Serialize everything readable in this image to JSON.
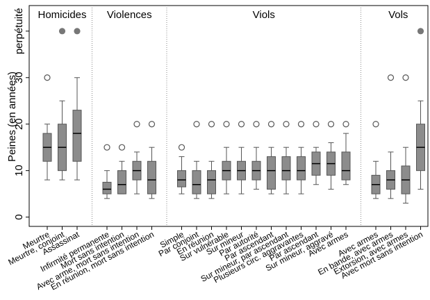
{
  "chart_data": {
    "type": "box",
    "ylabel": "Peines (en années)",
    "ylim": [
      -2,
      45.5
    ],
    "yticks": [
      0,
      10,
      20,
      30,
      {
        "value": 40,
        "label": "perpétuité"
      }
    ],
    "color": "#8c8c8c",
    "groups": [
      {
        "name": "Homicides",
        "categories": [
          "Meurtre",
          "Meurtre, conjoint",
          "Assassinat"
        ],
        "min": [
          8,
          8,
          8
        ],
        "q1": [
          12,
          10,
          12
        ],
        "median": [
          15,
          15,
          18
        ],
        "q3": [
          18,
          20,
          23
        ],
        "max": [
          20,
          25,
          30
        ],
        "outliers": [
          [
            30
          ],
          [
            40
          ],
          [
            40
          ]
        ]
      },
      {
        "name": "Violences",
        "categories": [
          "Infirmité permanente",
          "Mort sans intention",
          "Avec arme, mort sans intention",
          "En réunion, mort sans intention"
        ],
        "min": [
          4,
          5,
          5,
          4
        ],
        "q1": [
          5,
          5,
          8,
          5
        ],
        "median": [
          6,
          7,
          10,
          8
        ],
        "q3": [
          7.5,
          10,
          12,
          12
        ],
        "max": [
          10,
          12,
          14,
          15
        ],
        "outliers": [
          [
            15
          ],
          [
            15
          ],
          [
            20
          ],
          [
            20
          ]
        ]
      },
      {
        "name": "Viols",
        "categories": [
          "Simple",
          "Par conjoint",
          "En réunion",
          "Sur vulnérable",
          "Sur mineur",
          "Par autorité",
          "Par ascendant",
          "Sur mineur, par ascendant",
          "Plusieurs circ. aggravantes",
          "Par ascendant",
          "Sur mineur, aggravé",
          "Avec armes"
        ],
        "min": [
          5,
          4,
          4,
          5,
          5,
          6,
          5,
          5,
          5,
          7,
          6,
          7
        ],
        "q1": [
          6.5,
          5,
          5,
          8,
          8,
          8,
          6,
          8,
          8,
          9,
          9,
          8
        ],
        "median": [
          8,
          7,
          8,
          10,
          10,
          10,
          10,
          10,
          10,
          11.5,
          11.5,
          10
        ],
        "q3": [
          10,
          10,
          10,
          12,
          12,
          12,
          13,
          13,
          13,
          14,
          14,
          14
        ],
        "max": [
          13,
          12,
          12,
          15,
          15,
          15,
          15,
          15,
          15,
          15,
          16,
          18
        ],
        "outliers": [
          [
            15
          ],
          [
            20
          ],
          [
            20
          ],
          [
            20
          ],
          [
            20
          ],
          [
            20
          ],
          [
            20
          ],
          [
            20
          ],
          [
            20
          ],
          [
            20
          ],
          [
            20
          ],
          [
            20
          ]
        ]
      },
      {
        "name": "Vols",
        "categories": [
          "Avec armes",
          "En bande, avec armes",
          "Extorsion, avec armes",
          "Avec mort sans intention"
        ],
        "min": [
          4,
          4,
          3,
          6
        ],
        "q1": [
          5,
          6,
          5,
          10
        ],
        "median": [
          7,
          8,
          8,
          15
        ],
        "q3": [
          9,
          10,
          11,
          20
        ],
        "max": [
          12,
          14,
          15,
          25
        ],
        "outliers": [
          [
            20
          ],
          [
            30
          ],
          [
            30
          ],
          [
            40
          ]
        ]
      }
    ]
  }
}
